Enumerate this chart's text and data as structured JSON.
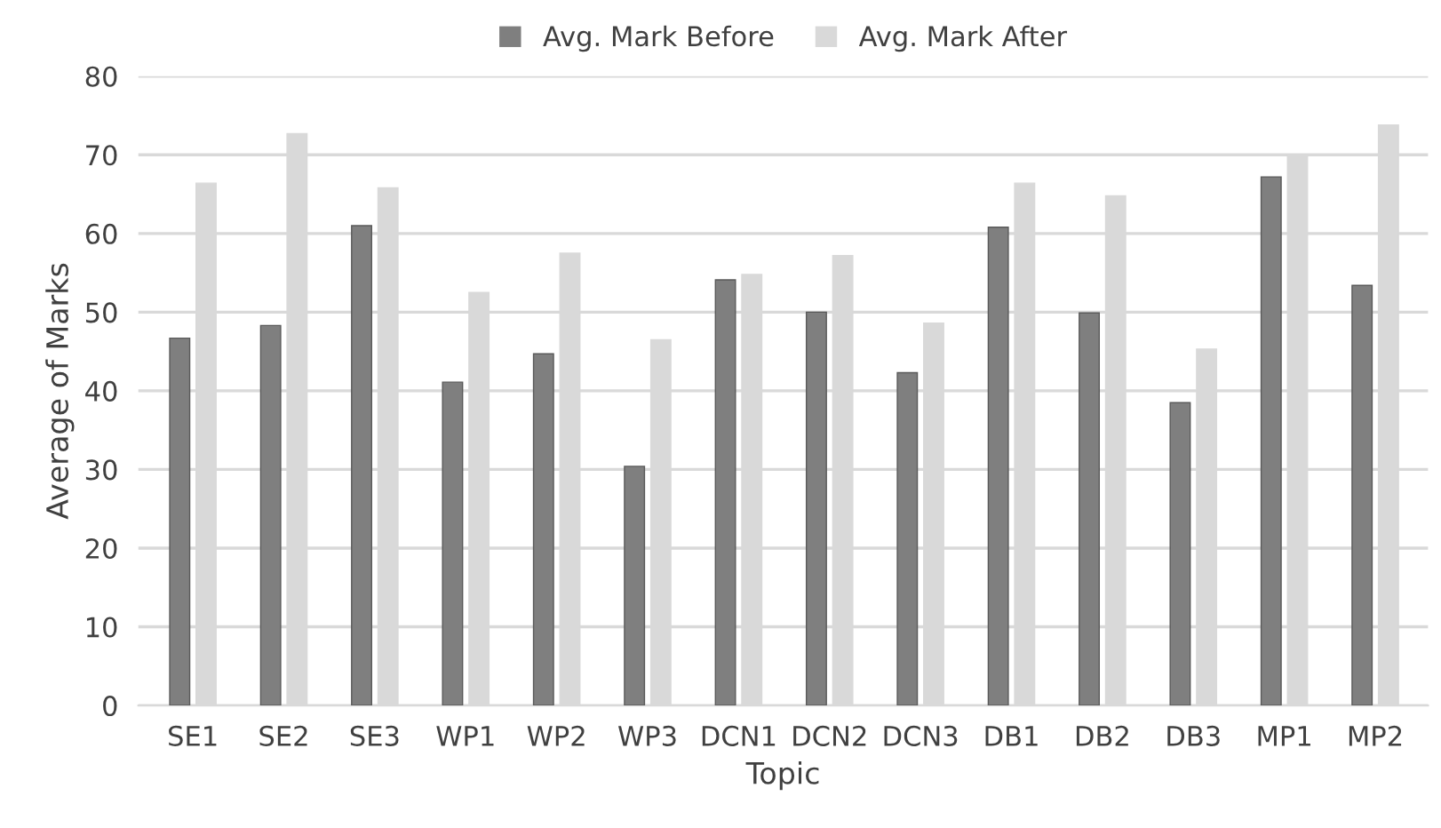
{
  "chart_data": {
    "type": "bar",
    "xlabel": "Topic",
    "ylabel": "Average of Marks",
    "categories": [
      "SE1",
      "SE2",
      "SE3",
      "WP1",
      "WP2",
      "WP3",
      "DCN1",
      "DCN2",
      "DCN3",
      "DB1",
      "DB2",
      "DB3",
      "MP1",
      "MP2"
    ],
    "series": [
      {
        "name": "Avg. Mark Before",
        "color": "#7f7f7f",
        "values": [
          46.7,
          48.3,
          61.0,
          41.1,
          44.7,
          30.4,
          54.1,
          50.0,
          42.3,
          60.8,
          49.9,
          38.5,
          67.2,
          53.4
        ]
      },
      {
        "name": "Avg. Mark After",
        "color": "#d9d9d9",
        "values": [
          66.4,
          72.7,
          65.8,
          52.5,
          57.5,
          46.5,
          54.8,
          57.2,
          48.6,
          66.4,
          64.8,
          45.3,
          70.0,
          73.8
        ]
      }
    ],
    "ylim": [
      0,
      80
    ],
    "yticks": [
      0,
      10,
      20,
      30,
      40,
      50,
      60,
      70,
      80
    ],
    "grid": "y",
    "legend": "top"
  }
}
